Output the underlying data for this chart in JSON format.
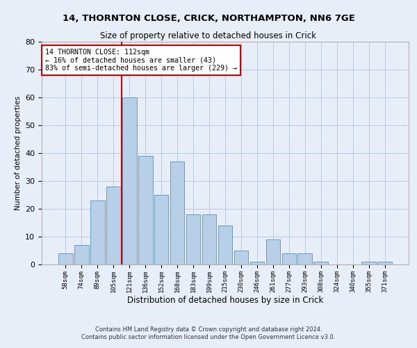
{
  "title1": "14, THORNTON CLOSE, CRICK, NORTHAMPTON, NN6 7GE",
  "title2": "Size of property relative to detached houses in Crick",
  "xlabel": "Distribution of detached houses by size in Crick",
  "ylabel": "Number of detached properties",
  "bin_labels": [
    "58sqm",
    "74sqm",
    "89sqm",
    "105sqm",
    "121sqm",
    "136sqm",
    "152sqm",
    "168sqm",
    "183sqm",
    "199sqm",
    "215sqm",
    "230sqm",
    "246sqm",
    "261sqm",
    "277sqm",
    "293sqm",
    "308sqm",
    "324sqm",
    "340sqm",
    "355sqm",
    "371sqm"
  ],
  "bar_values": [
    4,
    7,
    23,
    28,
    60,
    39,
    25,
    37,
    18,
    18,
    14,
    5,
    1,
    9,
    4,
    4,
    1,
    0,
    0,
    1,
    1
  ],
  "bar_color": "#b8cfe8",
  "bar_edge_color": "#7098bc",
  "vline_x": 3.5,
  "vline_color": "#cc0000",
  "annotation_text": "14 THORNTON CLOSE: 112sqm\n← 16% of detached houses are smaller (43)\n83% of semi-detached houses are larger (229) →",
  "annotation_box_color": "#ffffff",
  "annotation_box_edge": "#cc0000",
  "ylim": [
    0,
    80
  ],
  "yticks": [
    0,
    10,
    20,
    30,
    40,
    50,
    60,
    70,
    80
  ],
  "footer1": "Contains HM Land Registry data © Crown copyright and database right 2024.",
  "footer2": "Contains public sector information licensed under the Open Government Licence v3.0.",
  "bg_color": "#e8eef8",
  "plot_bg_color": "#e8eef8"
}
